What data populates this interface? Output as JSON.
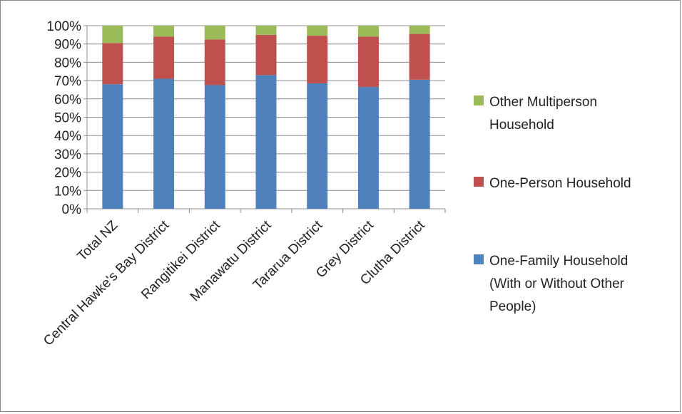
{
  "chart_data": {
    "type": "bar",
    "stacked": true,
    "percent": true,
    "categories": [
      "Total NZ",
      "Central Hawke's Bay District",
      "Rangitikei District",
      "Manawatu District",
      "Tararua District",
      "Grey District",
      "Clutha District"
    ],
    "series": [
      {
        "name": "One-Family Household (With or Without Other People)",
        "legend_lines": [
          "One-Family Household",
          "(With or Without Other",
          "People)"
        ],
        "color": "#4F81BD",
        "values": [
          68,
          71,
          67.5,
          73,
          68.5,
          66.5,
          70.5
        ]
      },
      {
        "name": "One-Person Household",
        "legend_lines": [
          "One-Person Household"
        ],
        "color": "#C0504D",
        "values": [
          22.5,
          23,
          25,
          22,
          26,
          27.5,
          25
        ]
      },
      {
        "name": "Other Multiperson Household",
        "legend_lines": [
          "Other Multiperson",
          "Household"
        ],
        "color": "#9BBB59",
        "values": [
          9.5,
          6,
          7.5,
          5,
          5.5,
          6,
          4.5
        ]
      }
    ],
    "yticks": [
      "0%",
      "10%",
      "20%",
      "30%",
      "40%",
      "50%",
      "60%",
      "70%",
      "80%",
      "90%",
      "100%"
    ],
    "ylim": [
      0,
      100
    ],
    "grid": true,
    "legend_position": "right"
  }
}
